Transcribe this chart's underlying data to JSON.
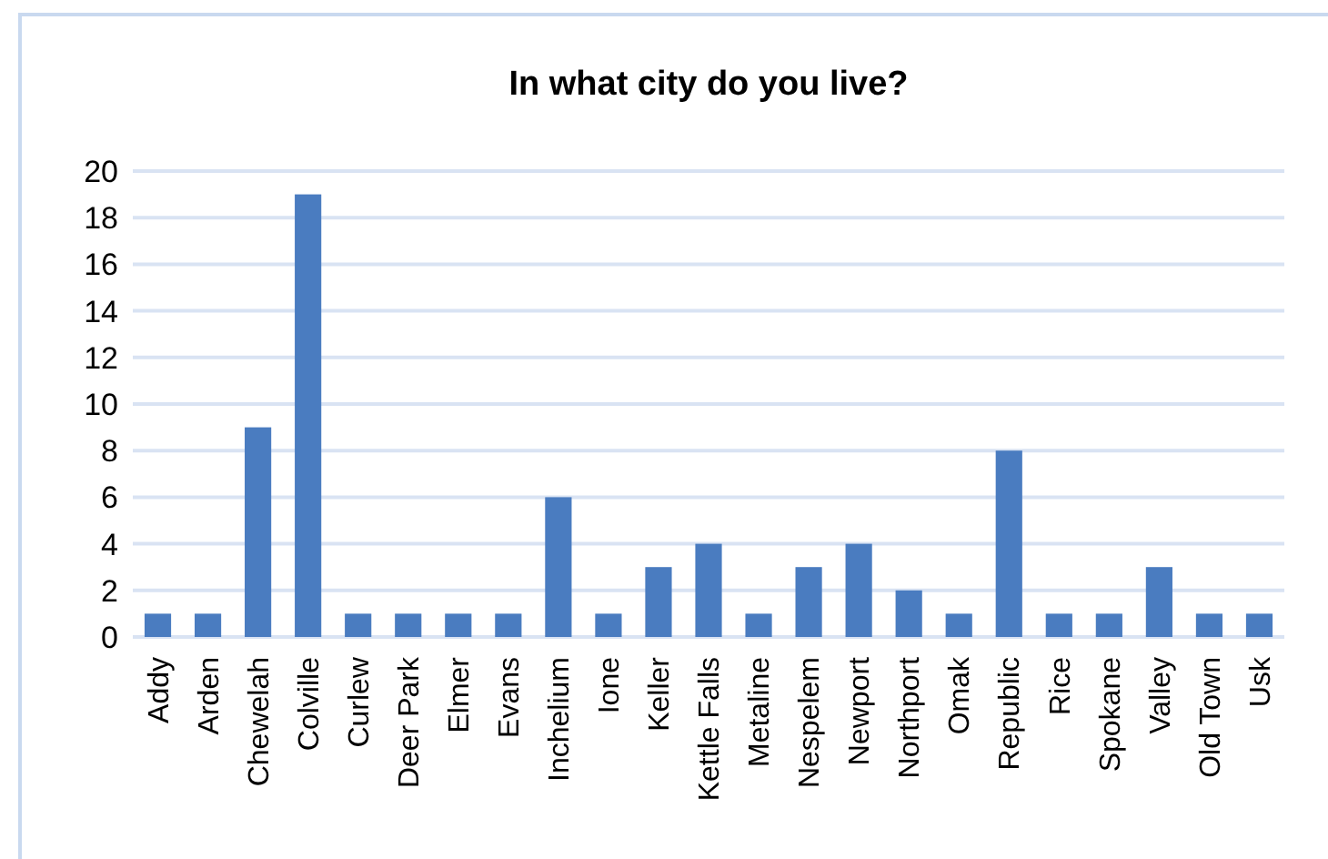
{
  "chart_data": {
    "type": "bar",
    "title": "In what city do you live?",
    "categories": [
      "Addy",
      "Arden",
      "Chewelah",
      "Colville",
      "Curlew",
      "Deer Park",
      "Elmer",
      "Evans",
      "Inchelium",
      "Ione",
      "Keller",
      "Kettle Falls",
      "Metaline",
      "Nespelem",
      "Newport",
      "Northport",
      "Omak",
      "Republic",
      "Rice",
      "Spokane",
      "Valley",
      "Old Town",
      "Usk"
    ],
    "values": [
      1,
      1,
      9,
      19,
      1,
      1,
      1,
      1,
      6,
      1,
      3,
      4,
      1,
      3,
      4,
      2,
      1,
      8,
      1,
      1,
      3,
      1,
      1
    ],
    "color": "#4a7cc0",
    "ylim": [
      0,
      20
    ],
    "yticks": [
      0,
      2,
      4,
      6,
      8,
      10,
      12,
      14,
      16,
      18,
      20
    ],
    "grid": "y"
  }
}
